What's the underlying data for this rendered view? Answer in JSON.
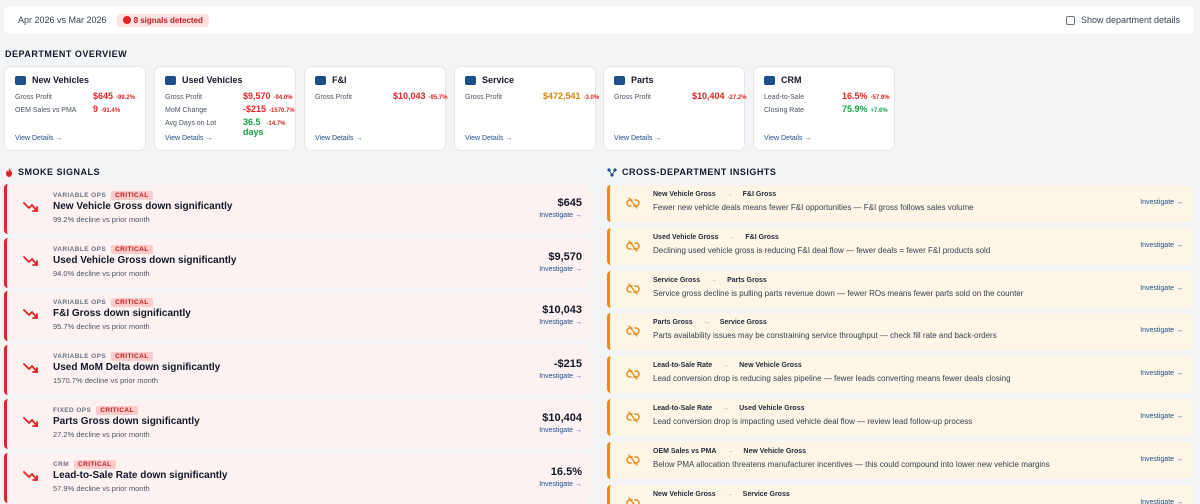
{
  "topbar": {
    "period": "Apr 2026 vs Mar 2026",
    "signals_badge": "8 signals detected",
    "toggle_label": "Show department details"
  },
  "overview": {
    "title": "DEPARTMENT OVERVIEW",
    "view_details": "View Details →",
    "departments": [
      {
        "name": "New Vehicles",
        "icon": "car-icon",
        "metrics": [
          {
            "label": "Gross Profit",
            "value": "$645",
            "change": "-99.2%",
            "tone": "red"
          },
          {
            "label": "OEM Sales vs PMA",
            "value": "9",
            "change": "-91.4%",
            "tone": "red"
          }
        ]
      },
      {
        "name": "Used Vehicles",
        "icon": "car-icon",
        "metrics": [
          {
            "label": "Gross Profit",
            "value": "$9,570",
            "change": "-94.0%",
            "tone": "red"
          },
          {
            "label": "MoM Change",
            "value": "-$215",
            "change": "-1570.7%",
            "tone": "red"
          },
          {
            "label": "Avg Days on Lot",
            "value": "36.5 days",
            "change": "-14.7%",
            "tone": "green-red"
          }
        ]
      },
      {
        "name": "F&I",
        "icon": "document-icon",
        "metrics": [
          {
            "label": "Gross Profit",
            "value": "$10,043",
            "change": "-95.7%",
            "tone": "red"
          }
        ]
      },
      {
        "name": "Service",
        "icon": "wrench-icon",
        "metrics": [
          {
            "label": "Gross Profit",
            "value": "$472,541",
            "change": "-3.0%",
            "tone": "amber"
          }
        ]
      },
      {
        "name": "Parts",
        "icon": "parts-icon",
        "metrics": [
          {
            "label": "Gross Profit",
            "value": "$10,404",
            "change": "-27.2%",
            "tone": "red"
          }
        ]
      },
      {
        "name": "CRM",
        "icon": "megaphone-icon",
        "metrics": [
          {
            "label": "Lead-to-Sale",
            "value": "16.5%",
            "change": "-57.9%",
            "tone": "red"
          },
          {
            "label": "Closing Rate",
            "value": "75.9%",
            "change": "+7.6%",
            "tone": "green"
          }
        ]
      }
    ]
  },
  "smoke": {
    "title": "SMOKE SIGNALS",
    "investigate": "Investigate →",
    "signals": [
      {
        "category": "VARIABLE OPS",
        "severity": "CRITICAL",
        "title": "New Vehicle Gross down significantly",
        "detail": "99.2% decline vs prior month",
        "value": "$645"
      },
      {
        "category": "VARIABLE OPS",
        "severity": "CRITICAL",
        "title": "Used Vehicle Gross down significantly",
        "detail": "94.0% decline vs prior month",
        "value": "$9,570"
      },
      {
        "category": "VARIABLE OPS",
        "severity": "CRITICAL",
        "title": "F&I Gross down significantly",
        "detail": "95.7% decline vs prior month",
        "value": "$10,043"
      },
      {
        "category": "VARIABLE OPS",
        "severity": "CRITICAL",
        "title": "Used MoM Delta down significantly",
        "detail": "1570.7% decline vs prior month",
        "value": "-$215"
      },
      {
        "category": "FIXED OPS",
        "severity": "CRITICAL",
        "title": "Parts Gross down significantly",
        "detail": "27.2% decline vs prior month",
        "value": "$10,404"
      },
      {
        "category": "CRM",
        "severity": "CRITICAL",
        "title": "Lead-to-Sale Rate down significantly",
        "detail": "57.9% decline vs prior month",
        "value": "16.5%"
      }
    ]
  },
  "insights": {
    "title": "CROSS-DEPARTMENT INSIGHTS",
    "investigate": "Investigate →",
    "items": [
      {
        "from": "New Vehicle Gross",
        "to": "F&I Gross",
        "text": "Fewer new vehicle deals means fewer F&I opportunities — F&I gross follows sales volume"
      },
      {
        "from": "Used Vehicle Gross",
        "to": "F&I Gross",
        "text": "Declining used vehicle gross is reducing F&I deal flow — fewer deals = fewer F&I products sold"
      },
      {
        "from": "Service Gross",
        "to": "Parts Gross",
        "text": "Service gross decline is pulling parts revenue down — fewer ROs means fewer parts sold on the counter"
      },
      {
        "from": "Parts Gross",
        "to": "Service Gross",
        "text": "Parts availability issues may be constraining service throughput — check fill rate and back-orders"
      },
      {
        "from": "Lead-to-Sale Rate",
        "to": "New Vehicle Gross",
        "text": "Lead conversion drop is reducing sales pipeline — fewer leads converting means fewer deals closing"
      },
      {
        "from": "Lead-to-Sale Rate",
        "to": "Used Vehicle Gross",
        "text": "Lead conversion drop is impacting used vehicle deal flow — review lead follow-up process"
      },
      {
        "from": "OEM Sales vs PMA",
        "to": "New Vehicle Gross",
        "text": "Below PMA allocation threatens manufacturer incentives — this could compound into lower new vehicle margins"
      },
      {
        "from": "New Vehicle Gross",
        "to": "Service Gross",
        "text": ""
      }
    ]
  }
}
